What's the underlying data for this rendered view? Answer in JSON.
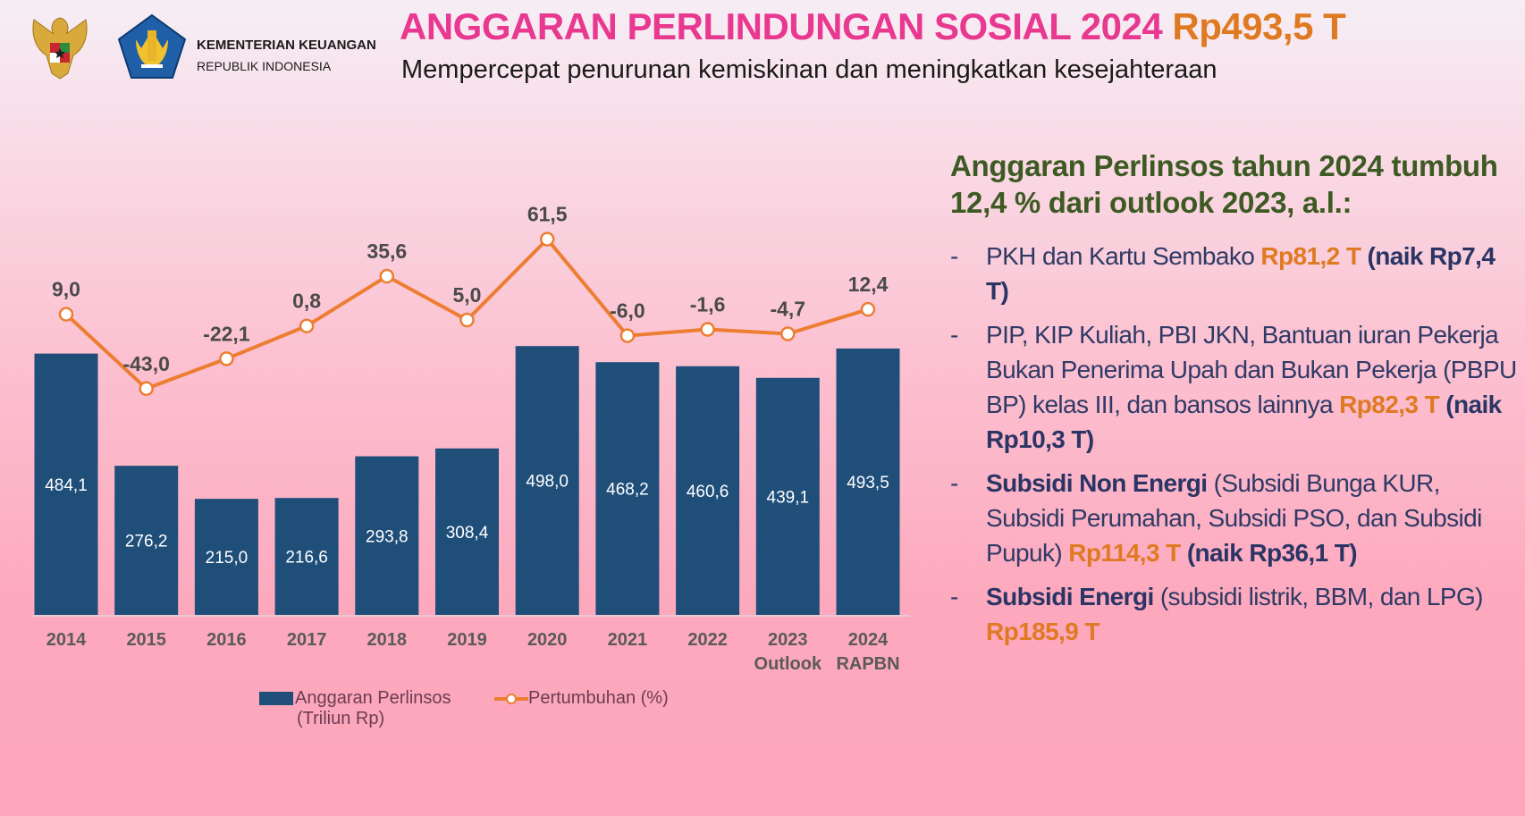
{
  "header": {
    "org_name": "KEMENTERIAN KEUANGAN",
    "org_sub": "REPUBLIK INDONESIA",
    "title": "ANGGARAN PERLINDUNGAN SOSIAL 2024",
    "title_amount": "Rp493,5 T",
    "subtitle": "Mempercepat penurunan kemiskinan dan meningkatkan kesejahteraan"
  },
  "colors": {
    "title": "#e8388f",
    "amount": "#e07a22",
    "bar": "#1f4e79",
    "line": "#ed7d31",
    "heading": "#3c5a22"
  },
  "chart_data": {
    "type": "bar+line",
    "categories": [
      [
        "2014"
      ],
      [
        "2015"
      ],
      [
        "2016"
      ],
      [
        "2017"
      ],
      [
        "2018"
      ],
      [
        "2019"
      ],
      [
        "2020"
      ],
      [
        "2021"
      ],
      [
        "2022"
      ],
      [
        "2023",
        "Outlook"
      ],
      [
        "2024",
        "RAPBN"
      ]
    ],
    "series": [
      {
        "name": "Anggaran Perlinsos (Triliun Rp)",
        "type": "bar",
        "values": [
          484.1,
          276.2,
          215.0,
          216.6,
          293.8,
          308.4,
          498.0,
          468.2,
          460.6,
          439.1,
          493.5
        ],
        "labels": [
          "484,1",
          "276,2",
          "215,0",
          "216,6",
          "293,8",
          "308,4",
          "498,0",
          "468,2",
          "460,6",
          "439,1",
          "493,5"
        ]
      },
      {
        "name": "Pertumbuhan (%)",
        "type": "line",
        "values": [
          9.0,
          -43.0,
          -22.1,
          0.8,
          35.6,
          5.0,
          61.5,
          -6.0,
          -1.6,
          -4.7,
          12.4
        ],
        "labels": [
          "9,0",
          "-43,0",
          "-22,1",
          "0,8",
          "35,6",
          "5,0",
          "61,5",
          "-6,0",
          "-1,6",
          "-4,7",
          "12,4"
        ]
      }
    ],
    "legend": {
      "bar_line1": "Anggaran Perlinsos",
      "bar_line2": "(Triliun Rp)",
      "line": "Pertumbuhan (%)",
      "placement": "bottom"
    },
    "grid": false
  },
  "panel": {
    "heading": "Anggaran Perlinsos tahun 2024 tumbuh 12,4 % dari outlook 2023, a.l.:",
    "dash": "-",
    "bullets": [
      [
        {
          "t": "PKH dan Kartu Sembako ",
          "s": "normal"
        },
        {
          "t": "Rp81,2 T",
          "s": "amount"
        },
        {
          "t": " (naik Rp7,4 T)",
          "s": "bold"
        }
      ],
      [
        {
          "t": "PIP, KIP Kuliah, PBI JKN, Bantuan iuran Pekerja Bukan Penerima Upah dan Bukan Pekerja (PBPU BP) kelas III, dan bansos lainnya ",
          "s": "normal"
        },
        {
          "t": "Rp82,3 T",
          "s": "amount"
        },
        {
          "t": " (naik Rp10,3 T)",
          "s": "bold"
        }
      ],
      [
        {
          "t": "Subsidi Non Energi",
          "s": "bold"
        },
        {
          "t": " (Subsidi Bunga KUR, Subsidi Perumahan, Subsidi PSO, dan Subsidi Pupuk) ",
          "s": "normal"
        },
        {
          "t": "Rp114,3 T",
          "s": "amount"
        },
        {
          "t": " (naik Rp36,1 T)",
          "s": "bold"
        }
      ],
      [
        {
          "t": "Subsidi Energi",
          "s": "bold"
        },
        {
          "t": " (subsidi listrik, BBM, dan LPG)  ",
          "s": "normal"
        },
        {
          "t": "Rp185,9 T",
          "s": "amount"
        }
      ]
    ]
  }
}
